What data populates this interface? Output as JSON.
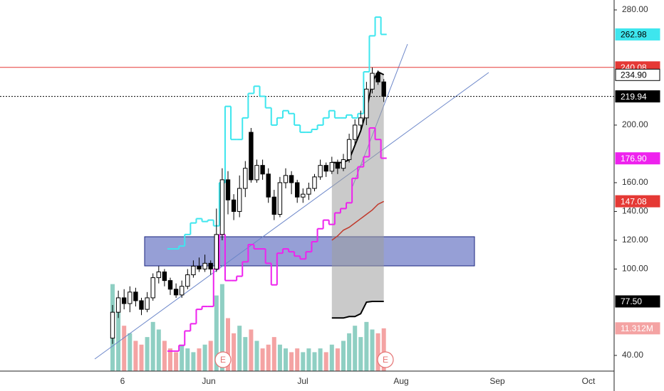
{
  "chart_data": {
    "type": "candlestick",
    "candles": {
      "open": [
        52,
        70,
        80,
        76,
        84,
        78,
        72,
        80,
        94,
        98,
        92,
        86,
        82,
        88,
        96,
        102,
        100,
        104,
        100,
        124,
        162,
        148,
        140,
        156,
        195,
        162,
        172,
        166,
        150,
        138,
        160,
        165,
        160,
        150,
        152,
        156,
        164,
        172,
        168,
        174,
        170,
        176,
        190,
        200,
        205,
        225,
        236,
        230
      ],
      "high": [
        75,
        85,
        86,
        88,
        87,
        80,
        84,
        97,
        102,
        100,
        94,
        90,
        92,
        100,
        106,
        108,
        110,
        106,
        142,
        170,
        168,
        152,
        165,
        175,
        198,
        176,
        176,
        170,
        155,
        164,
        170,
        168,
        162,
        156,
        160,
        166,
        176,
        174,
        178,
        176,
        180,
        194,
        204,
        210,
        230,
        240,
        238,
        232
      ],
      "low": [
        48,
        66,
        72,
        70,
        74,
        68,
        70,
        78,
        90,
        88,
        82,
        80,
        80,
        86,
        94,
        98,
        98,
        96,
        98,
        120,
        138,
        134,
        136,
        150,
        160,
        160,
        162,
        146,
        134,
        136,
        156,
        152,
        146,
        146,
        148,
        154,
        162,
        164,
        166,
        166,
        168,
        174,
        186,
        196,
        200,
        222,
        228,
        216
      ],
      "close": [
        70,
        80,
        76,
        84,
        78,
        72,
        80,
        94,
        98,
        92,
        86,
        82,
        88,
        96,
        102,
        100,
        104,
        100,
        124,
        162,
        148,
        140,
        156,
        170,
        162,
        172,
        166,
        150,
        138,
        160,
        165,
        160,
        150,
        152,
        156,
        164,
        172,
        168,
        174,
        170,
        176,
        190,
        200,
        205,
        225,
        236,
        230,
        220
      ],
      "up_color": "#ffffff",
      "down_color": "#000000"
    },
    "volume": {
      "values": [
        23,
        18,
        12,
        10,
        8,
        7,
        9,
        13,
        11,
        8,
        6,
        5,
        7,
        6,
        5,
        6,
        7,
        8,
        20,
        23,
        14,
        10,
        12,
        9,
        11,
        8,
        6,
        7,
        9,
        7,
        6,
        5,
        6,
        5,
        6,
        5,
        6,
        5,
        7,
        6,
        8,
        10,
        12,
        9,
        13,
        11,
        10,
        11.312
      ],
      "up_color": "#8fcfc3",
      "down_color": "#f4a3a3",
      "y2lim": [
        0,
        23.5
      ],
      "tag": {
        "value": 11.312,
        "label": "11.312M",
        "color": "#f4a3a3",
        "text_color": "#ffffff"
      }
    },
    "lines": [
      {
        "color": "#3ee6ee",
        "step": true,
        "values": [
          null,
          null,
          null,
          null,
          null,
          null,
          null,
          null,
          null,
          null,
          114,
          114,
          116,
          124,
          132,
          135,
          133,
          134,
          130,
          160,
          213,
          190,
          190,
          205,
          222,
          227,
          220,
          212,
          200,
          205,
          210,
          208,
          200,
          195,
          195,
          197,
          200,
          205,
          210,
          205,
          205,
          207,
          205,
          208,
          237,
          262,
          275,
          263
        ]
      },
      {
        "color": "#ee22ee",
        "step": true,
        "values": [
          null,
          null,
          null,
          null,
          null,
          null,
          null,
          null,
          null,
          null,
          43,
          43,
          47,
          57,
          62,
          72,
          74,
          74,
          100,
          124,
          92,
          92,
          95,
          105,
          117,
          114,
          114,
          104,
          89,
          111,
          114,
          112,
          109,
          107,
          112,
          119,
          128,
          134,
          131,
          139,
          142,
          146,
          163,
          171,
          178,
          198,
          190,
          177
        ]
      },
      {
        "color": "#c0392b",
        "step": false,
        "values": [
          null,
          null,
          null,
          null,
          null,
          null,
          null,
          null,
          null,
          null,
          null,
          null,
          null,
          null,
          null,
          null,
          null,
          null,
          null,
          null,
          null,
          null,
          null,
          null,
          null,
          null,
          null,
          null,
          null,
          null,
          null,
          null,
          null,
          null,
          null,
          null,
          null,
          null,
          120,
          123,
          127,
          129,
          132,
          135,
          138,
          141,
          145,
          147
        ]
      }
    ],
    "band": {
      "upper": [
        null,
        null,
        null,
        null,
        null,
        null,
        null,
        null,
        null,
        null,
        null,
        null,
        null,
        null,
        null,
        null,
        null,
        null,
        null,
        null,
        null,
        null,
        null,
        null,
        null,
        null,
        null,
        null,
        null,
        null,
        null,
        null,
        null,
        null,
        null,
        null,
        null,
        null,
        174,
        174,
        174,
        176,
        186,
        196,
        210,
        230,
        237,
        235
      ],
      "lower": [
        null,
        null,
        null,
        null,
        null,
        null,
        null,
        null,
        null,
        null,
        null,
        null,
        null,
        null,
        null,
        null,
        null,
        null,
        null,
        null,
        null,
        null,
        null,
        null,
        null,
        null,
        null,
        null,
        null,
        null,
        null,
        null,
        null,
        null,
        null,
        null,
        null,
        null,
        66,
        66,
        66,
        67,
        67,
        69,
        77,
        77.5,
        77.5,
        77.5
      ],
      "fill": "#9e9e9e",
      "line_color": "#000000"
    },
    "hlines": [
      {
        "value": 240.08,
        "color": "#e53935",
        "dotted": false
      },
      {
        "value": 219.94,
        "color": "#000000",
        "dotted": true
      }
    ],
    "price_tags": [
      {
        "value": 262.98,
        "label": "262.98",
        "color": "#3ee6ee",
        "text_color": "#000000"
      },
      {
        "value": 240.08,
        "label": "240.08",
        "color": "#e53935",
        "text_color": "#ffffff"
      },
      {
        "value": 234.9,
        "label": "234.90",
        "color": "#ffffff",
        "text_color": "#000000"
      },
      {
        "value": 219.94,
        "label": "219.94",
        "color": "#000000",
        "text_color": "#ffffff"
      },
      {
        "value": 176.9,
        "label": "176.90",
        "color": "#ee22ee",
        "text_color": "#ffffff"
      },
      {
        "value": 147.08,
        "label": "147.08",
        "color": "#e53935",
        "text_color": "#ffffff"
      },
      {
        "value": 77.5,
        "label": "77.50",
        "color": "#000000",
        "text_color": "#ffffff"
      }
    ],
    "ylim": [
      29.1,
      286.9
    ],
    "yticks": [
      {
        "value": 280,
        "label": "280.00"
      },
      {
        "value": 200,
        "label": "200.00"
      },
      {
        "value": 160,
        "label": "160.00"
      },
      {
        "value": 140,
        "label": "140.00"
      },
      {
        "value": 120,
        "label": "120.00"
      },
      {
        "value": 100,
        "label": "100.00"
      },
      {
        "value": 40,
        "label": "40.00"
      }
    ],
    "categories": [
      "6",
      "Jun",
      "Jul",
      "Aug",
      "Sep",
      "Oct"
    ],
    "events": [
      "E",
      "E"
    ]
  }
}
